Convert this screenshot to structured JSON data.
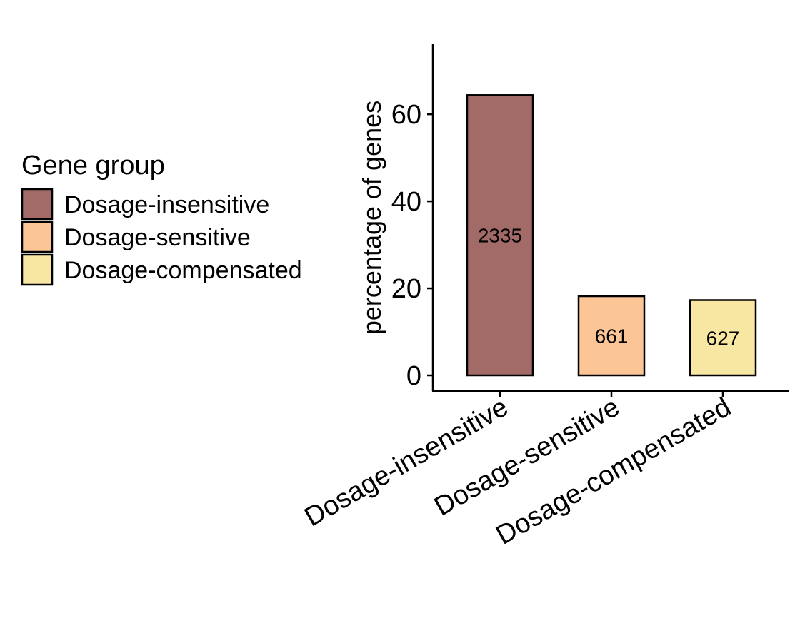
{
  "chart_data": {
    "type": "bar",
    "categories": [
      "Dosage-insensitive",
      "Dosage-sensitive",
      "Dosage-compensated"
    ],
    "values": [
      64.4,
      18.2,
      17.3
    ],
    "bar_labels": [
      "2335",
      "661",
      "627"
    ],
    "colors": [
      "#a36b67",
      "#fcc596",
      "#f8e7a3"
    ],
    "xlabel": "",
    "ylabel": "percentage of genes",
    "ylim": [
      0,
      67.5
    ],
    "yticks": [
      0,
      20,
      40,
      60
    ],
    "grid": false,
    "legend": {
      "title": "Gene group",
      "placement": "left",
      "entries": [
        "Dosage-insensitive",
        "Dosage-sensitive",
        "Dosage-compensated"
      ]
    }
  }
}
